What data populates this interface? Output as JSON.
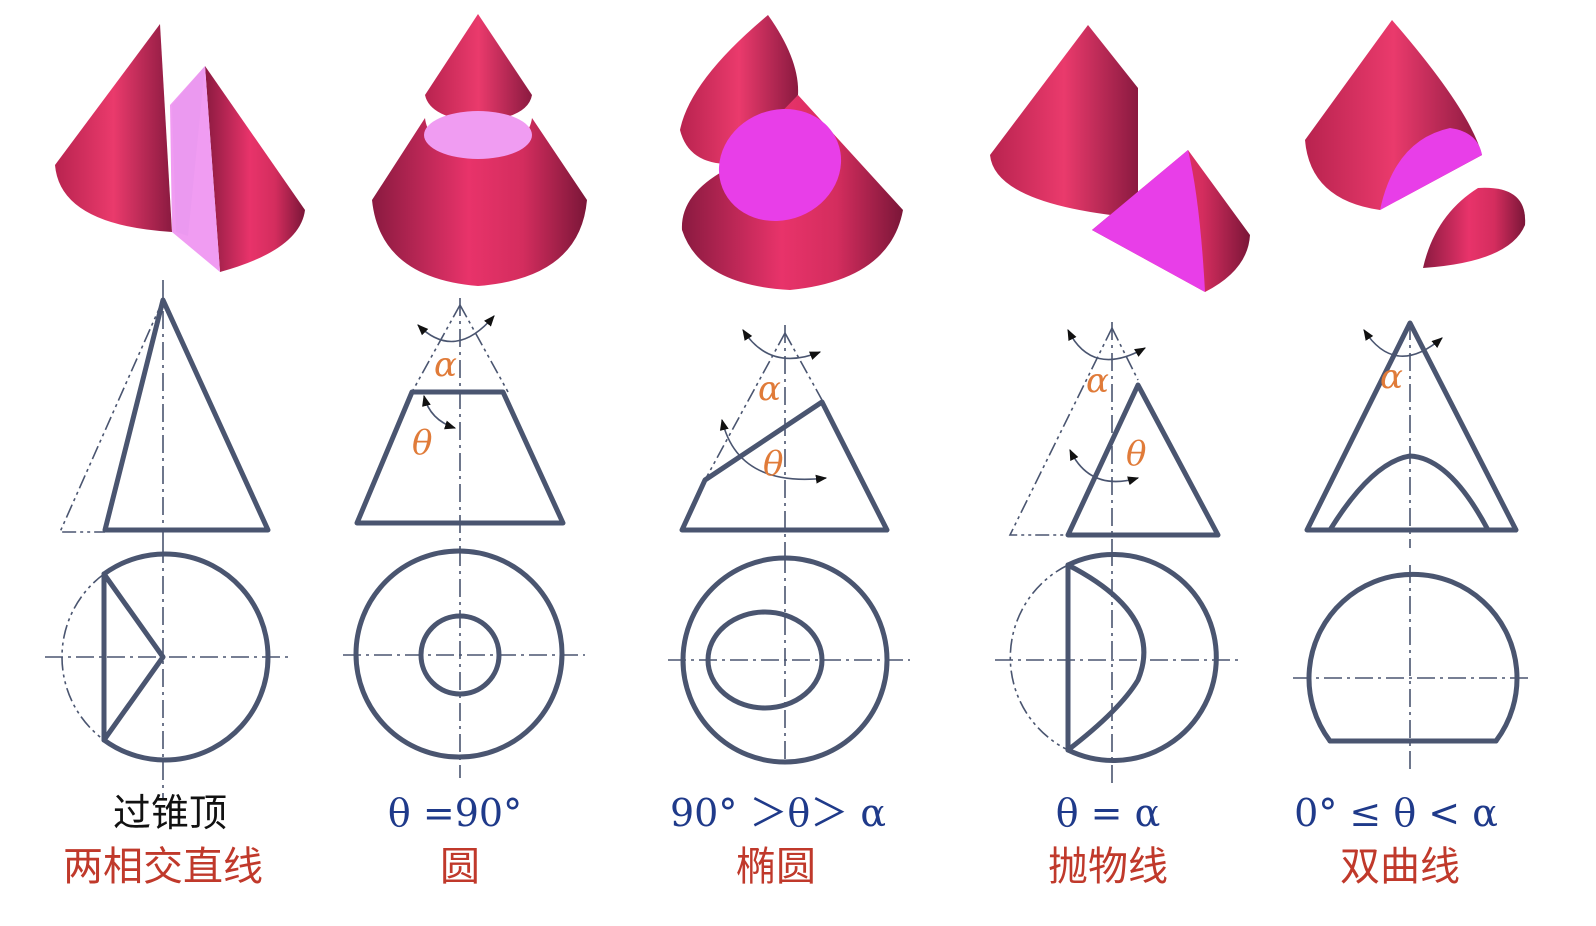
{
  "columns": [
    {
      "condition": "过锥顶",
      "name": "两相交直线"
    },
    {
      "condition": "θ =90°",
      "name": "圆"
    },
    {
      "condition": "90° ＞θ＞ α",
      "name": "椭圆"
    },
    {
      "condition": "θ = α",
      "name": "抛物线"
    },
    {
      "condition": "0° ≤ θ < α",
      "name": "双曲线"
    }
  ],
  "angle_labels": {
    "alpha": "α",
    "theta": "θ"
  },
  "colors": {
    "cone_face": "#e03364",
    "cone_dark": "#8a1a40",
    "section_light": "#f09cf2",
    "section_bright": "#e83ee8",
    "line": "#4a5570",
    "condition_text": "#1f3a8a",
    "name_text": "#c0392b",
    "angle_text": "#e07b39"
  }
}
